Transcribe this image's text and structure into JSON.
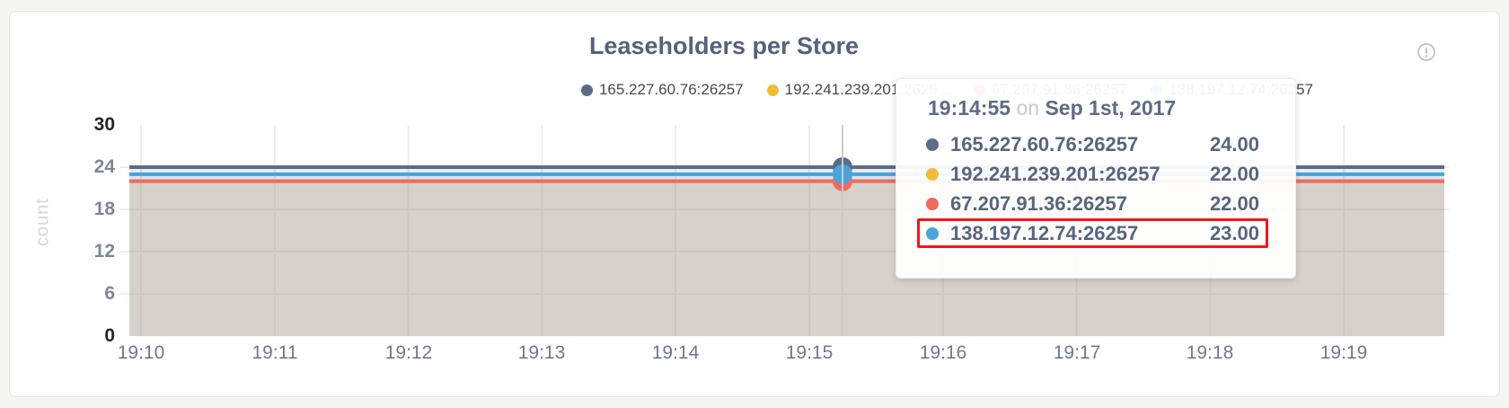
{
  "page": {
    "background": "#f5f5f4"
  },
  "card": {
    "background": "#ffffff",
    "border_color": "#e4e4e4"
  },
  "header": {
    "title": "Leaseholders per Store",
    "info_icon": "exclamation-circle-icon",
    "info_icon_color": "#c5c7c9"
  },
  "legend": {
    "items": [
      {
        "label": "165.227.60.76:26257",
        "color": "#5b6c87"
      },
      {
        "label": "192.241.239.201:2625...",
        "color": "#eebe3a"
      },
      {
        "label": "67.207.91.36:26257",
        "color": "#ee6a5f"
      },
      {
        "label": "138.197.12.74:26257",
        "color": "#4aa3da"
      }
    ]
  },
  "tooltip": {
    "time": "19:14:55",
    "conjunction": "on",
    "date": "Sep 1st, 2017",
    "highlight_color": "#f11717",
    "rows": [
      {
        "name": "165.227.60.76:26257",
        "value": "24.00",
        "color": "#5b6c87",
        "highlighted": false
      },
      {
        "name": "192.241.239.201:26257",
        "value": "22.00",
        "color": "#eebe3a",
        "highlighted": false
      },
      {
        "name": "67.207.91.36:26257",
        "value": "22.00",
        "color": "#ee6a5f",
        "highlighted": false
      },
      {
        "name": "138.197.12.74:26257",
        "value": "23.00",
        "color": "#4aa3da",
        "highlighted": true
      }
    ]
  },
  "chart_data": {
    "type": "line",
    "title": "Leaseholders per Store",
    "xlabel": "",
    "ylabel": "count",
    "ylim": [
      0,
      30
    ],
    "y_ticks": [
      30,
      24,
      18,
      12,
      6,
      0
    ],
    "x_ticks": [
      "19:10",
      "19:11",
      "19:12",
      "19:13",
      "19:14",
      "19:15",
      "19:16",
      "19:17",
      "19:18",
      "19:19"
    ],
    "grid": true,
    "legend_position": "top",
    "area_fill": true,
    "series": [
      {
        "name": "165.227.60.76:26257",
        "color": "#5b6c87",
        "values_constant": 24
      },
      {
        "name": "192.241.239.201:26257",
        "color": "#eebe3a",
        "values_constant": 22
      },
      {
        "name": "67.207.91.36:26257",
        "color": "#ee6a5f",
        "values_constant": 22
      },
      {
        "name": "138.197.12.74:26257",
        "color": "#4aa3da",
        "values_constant": 23
      }
    ],
    "hover_point": {
      "time": "19:14:55",
      "date": "Sep 1st, 2017",
      "values": {
        "165.227.60.76:26257": 24,
        "192.241.239.201:26257": 22,
        "67.207.91.36:26257": 22,
        "138.197.12.74:26257": 23
      }
    }
  }
}
